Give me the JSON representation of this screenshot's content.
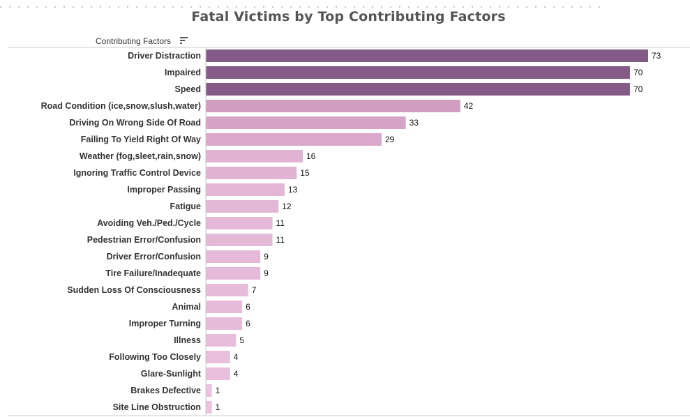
{
  "header": {
    "column_label": "Contributing Factors",
    "sort_icon": "sort-descending-icon"
  },
  "colors": {
    "bar_dark": "#845a86",
    "bar_mid": "#c890b6",
    "bar_light": "#ecc3e0",
    "axis_line": "#c8c8c8",
    "title": "#555555"
  },
  "chart_data": {
    "type": "bar",
    "orientation": "horizontal",
    "title": "Fatal Victims by Top Contributing Factors",
    "xlabel": "",
    "ylabel": "Contributing Factors",
    "categories": [
      "Driver Distraction",
      "Impaired",
      "Speed",
      "Road Condition (ice,snow,slush,water)",
      "Driving On Wrong Side Of Road",
      "Failing To Yield Right Of Way",
      "Weather (fog,sleet,rain,snow)",
      "Ignoring Traffic Control Device",
      "Improper Passing",
      "Fatigue",
      "Avoiding Veh./Ped./Cycle",
      "Pedestrian Error/Confusion",
      "Driver Error/Confusion",
      "Tire Failure/Inadequate",
      "Sudden Loss Of Consciousness",
      "Animal",
      "Improper Turning",
      "Illness",
      "Following Too Closely",
      "Glare-Sunlight",
      "Brakes Defective",
      "Site Line Obstruction"
    ],
    "values": [
      73,
      70,
      70,
      42,
      33,
      29,
      16,
      15,
      13,
      12,
      11,
      11,
      9,
      9,
      7,
      6,
      6,
      5,
      4,
      4,
      1,
      1
    ],
    "xlim": [
      0,
      73
    ],
    "sort": "descending",
    "grid": false,
    "legend": "none"
  }
}
